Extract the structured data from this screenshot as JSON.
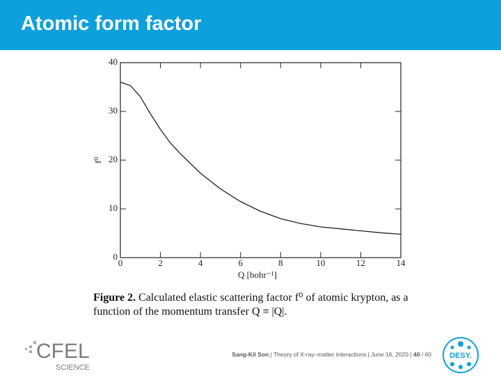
{
  "header": {
    "title": "Atomic form factor"
  },
  "chart_data": {
    "type": "line",
    "x_label": "Q [bohr⁻¹]",
    "y_label": "f⁰",
    "x": [
      0,
      0.5,
      1,
      1.5,
      2,
      2.5,
      3,
      4,
      5,
      6,
      7,
      8,
      9,
      10,
      11,
      12,
      13,
      14
    ],
    "series": [
      {
        "color": "#222222",
        "values": [
          36,
          35.3,
          33,
          29.5,
          26.3,
          23.5,
          21.3,
          17.3,
          14.1,
          11.5,
          9.5,
          8,
          7,
          6.3,
          5.9,
          5.5,
          5.1,
          4.8
        ]
      }
    ],
    "xlim": [
      0,
      14
    ],
    "xticks": [
      0,
      2,
      4,
      6,
      8,
      10,
      12,
      14
    ],
    "ylim": [
      0,
      40
    ],
    "yticks": [
      0,
      10,
      20,
      30,
      40
    ]
  },
  "caption": {
    "label": "Figure 2.",
    "text": "Calculated elastic scattering factor f⁰ of atomic krypton, as a function of the momentum transfer Q ≡ |Q|."
  },
  "footer": {
    "author": "Sang-Kil Son",
    "info": "| Theory of X-ray–matter interactions | June 16, 2020 |",
    "page": "40",
    "total": "/ 60"
  },
  "logos": {
    "cfel": "CFEL",
    "cfel_sub": "SCIENCE",
    "desy": "DESY."
  }
}
